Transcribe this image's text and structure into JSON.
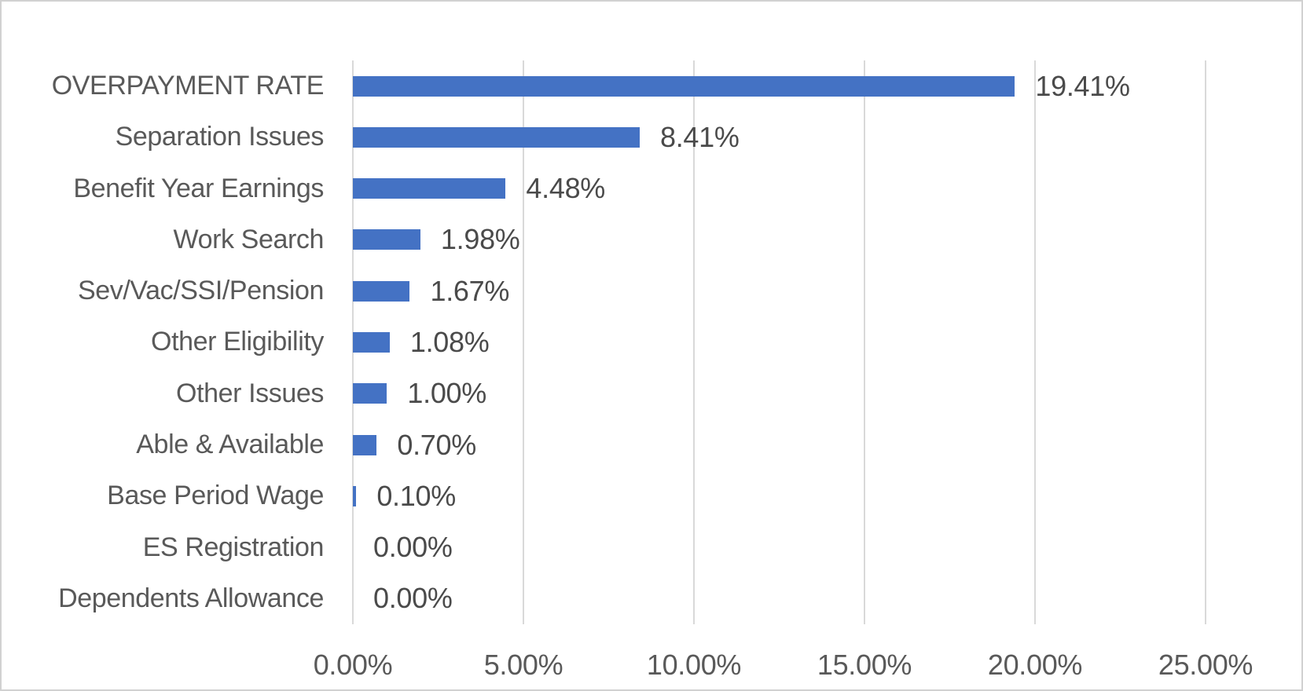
{
  "chart_data": {
    "type": "bar",
    "orientation": "horizontal",
    "title": "",
    "categories": [
      "OVERPAYMENT RATE",
      "Separation Issues",
      "Benefit Year Earnings",
      "Work Search",
      "Sev/Vac/SSI/Pension",
      "Other Eligibility",
      "Other Issues",
      "Able & Available",
      "Base Period Wage",
      "ES Registration",
      "Dependents Allowance"
    ],
    "values": [
      19.41,
      8.41,
      4.48,
      1.98,
      1.67,
      1.08,
      1.0,
      0.7,
      0.1,
      0.0,
      0.0
    ],
    "value_labels": [
      "19.41%",
      "8.41%",
      "4.48%",
      "1.98%",
      "1.67%",
      "1.08%",
      "1.00%",
      "0.70%",
      "0.10%",
      "0.00%",
      "0.00%"
    ],
    "x_axis": {
      "tick_labels": [
        "0.00%",
        "5.00%",
        "10.00%",
        "15.00%",
        "20.00%",
        "25.00%"
      ],
      "tick_values": [
        0,
        5,
        10,
        15,
        20,
        25
      ],
      "min": 0,
      "max": 25
    },
    "grid": true,
    "legend": false,
    "colors": {
      "bar": "#4472C4",
      "gridline": "#D9D9D9",
      "axis_line": "#D9D9D9",
      "category_text": "#595959",
      "value_text": "#4A4A4A",
      "tick_text": "#595959",
      "frame_border": "#D1D1D1",
      "background": "#FFFFFF"
    }
  }
}
